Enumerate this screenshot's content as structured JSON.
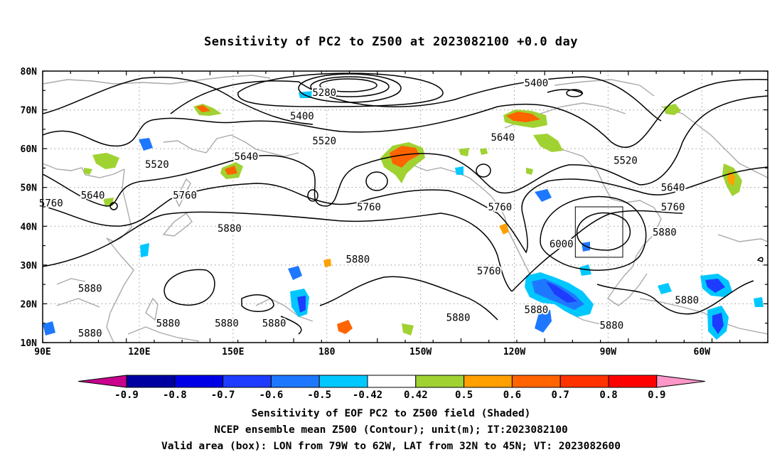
{
  "title": "Sensitivity of PC2 to Z500 at 2023082100 +0.0 day",
  "map": {
    "lat_labels": [
      "80N",
      "70N",
      "60N",
      "50N",
      "40N",
      "30N",
      "20N",
      "10N"
    ],
    "lon_labels": [
      "90E",
      "120E",
      "150E",
      "180",
      "150W",
      "120W",
      "90W",
      "60W"
    ],
    "contour_labels": [
      {
        "text": "5400",
        "lon": 267,
        "lat": 77
      },
      {
        "text": "5280",
        "lon": 191,
        "lat": 74.5
      },
      {
        "text": "5400",
        "lon": 183,
        "lat": 68.5
      },
      {
        "text": "5520",
        "lon": 191,
        "lat": 62
      },
      {
        "text": "5640",
        "lon": 255,
        "lat": 63
      },
      {
        "text": "5520",
        "lon": 299,
        "lat": 57
      },
      {
        "text": "5520",
        "lon": 131,
        "lat": 56
      },
      {
        "text": "5640",
        "lon": 163,
        "lat": 58
      },
      {
        "text": "5640",
        "lon": 108,
        "lat": 48
      },
      {
        "text": "5760",
        "lon": 141,
        "lat": 48
      },
      {
        "text": "5760",
        "lon": 93,
        "lat": 46
      },
      {
        "text": "5760",
        "lon": 207,
        "lat": 45
      },
      {
        "text": "5760",
        "lon": 254,
        "lat": 45
      },
      {
        "text": "5640",
        "lon": 316,
        "lat": 50
      },
      {
        "text": "5760",
        "lon": 316,
        "lat": 45
      },
      {
        "text": "5880",
        "lon": 313,
        "lat": 38.5
      },
      {
        "text": "5880",
        "lon": 157,
        "lat": 39.5
      },
      {
        "text": "6000",
        "lon": 276,
        "lat": 35.5
      },
      {
        "text": "5880",
        "lon": 203,
        "lat": 31.5
      },
      {
        "text": "5760",
        "lon": 250,
        "lat": 28.5
      },
      {
        "text": "5880",
        "lon": 107,
        "lat": 24
      },
      {
        "text": "5880",
        "lon": 239,
        "lat": 16.5
      },
      {
        "text": "5880",
        "lon": 267,
        "lat": 18.5
      },
      {
        "text": "5880",
        "lon": 321,
        "lat": 21
      },
      {
        "text": "5880",
        "lon": 135,
        "lat": 15
      },
      {
        "text": "5880",
        "lon": 156,
        "lat": 15
      },
      {
        "text": "5880",
        "lon": 173,
        "lat": 15
      },
      {
        "text": "5880",
        "lon": 107,
        "lat": 12.5
      },
      {
        "text": "5880",
        "lon": 294,
        "lat": 14.5
      }
    ],
    "valid_box": {
      "lon_min": 281,
      "lon_max": 298,
      "lat_min": 32,
      "lat_max": 45
    }
  },
  "colorbar": {
    "labels": [
      "-0.9",
      "-0.8",
      "-0.7",
      "-0.6",
      "-0.5",
      "-0.42",
      "0.42",
      "0.5",
      "0.6",
      "0.7",
      "0.8",
      "0.9"
    ],
    "colors": [
      "#0000a0",
      "#0000e6",
      "#1e3cff",
      "#1e78ff",
      "#00c8ff",
      "#ffffff",
      "#a0d232",
      "#ffa000",
      "#ff6400",
      "#ff3200",
      "#ff0000"
    ],
    "low_color": "#c8008c",
    "high_color": "#ff96c8"
  },
  "caption": {
    "line1": "Sensitivity of EOF PC2 to Z500 field (Shaded)",
    "line2": "NCEP ensemble mean Z500 (Contour); unit(m); IT:2023082100",
    "line3": "Valid area (box): LON from 79W to 62W, LAT from 32N to 45N; VT: 2023082600"
  }
}
